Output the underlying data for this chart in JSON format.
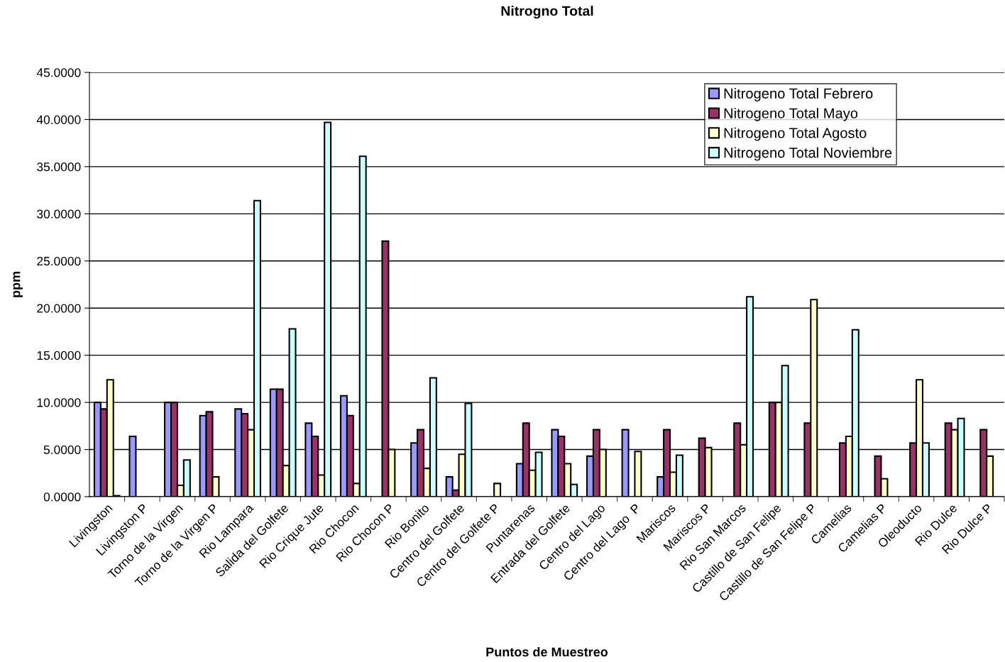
{
  "chart_data": {
    "type": "bar",
    "title": "Nitrogno Total",
    "xlabel": "Puntos de Muestreo",
    "ylabel": "ppm",
    "categories": [
      "Livingston",
      "Livingston P",
      "Torno de la Virgen",
      "Torno de la Virgen P",
      "Rio Lampara",
      "Salida del Golfete",
      "Rio Crique Jute",
      "Rio Chocon",
      "Rio Chocon P",
      "Rio Bonito",
      "Centro del Golfete",
      "Centro del Golfete P",
      "Puntarenas",
      "Entrada del Golfete",
      "Centro del Lago",
      "Centro del Lago  P",
      "Mariscos",
      "Mariscos P",
      "Rio San Marcos",
      "Castillo de San Felipe",
      "Castillo de San Felipe P",
      "Camelias",
      "Camelias P",
      "Oleoducto",
      "Rio Dulce",
      "Rio Dulce P"
    ],
    "series": [
      {
        "name": "Nitrogeno Total Febrero",
        "color": "#9999ff",
        "values": [
          10.0,
          6.4,
          10.0,
          8.6,
          9.3,
          11.4,
          7.8,
          10.7,
          null,
          5.7,
          2.1,
          null,
          3.5,
          7.1,
          4.3,
          7.1,
          2.1,
          null,
          null,
          null,
          null,
          null,
          null,
          null,
          null,
          null
        ]
      },
      {
        "name": "Nitrogeno Total Mayo",
        "color": "#993366",
        "values": [
          9.3,
          null,
          10.0,
          9.0,
          8.8,
          11.4,
          6.4,
          8.6,
          27.1,
          7.1,
          0.7,
          null,
          7.8,
          6.4,
          7.1,
          null,
          7.1,
          6.2,
          7.8,
          10.0,
          7.8,
          5.7,
          4.3,
          5.7,
          7.8,
          7.1
        ]
      },
      {
        "name": "Nitrogeno Total Agosto",
        "color": "#ffffcc",
        "values": [
          12.4,
          null,
          1.2,
          2.1,
          7.1,
          3.3,
          2.3,
          1.4,
          5.0,
          3.0,
          4.5,
          1.4,
          2.8,
          3.5,
          5.0,
          4.8,
          2.6,
          5.2,
          5.5,
          10.0,
          20.9,
          6.4,
          1.9,
          12.4,
          7.1,
          4.3
        ]
      },
      {
        "name": "Nitrogeno Total Noviembre",
        "color": "#ccffff",
        "values": [
          0.1,
          null,
          3.9,
          null,
          31.4,
          17.8,
          39.7,
          36.1,
          null,
          12.6,
          9.9,
          null,
          4.7,
          1.3,
          null,
          null,
          4.4,
          null,
          21.2,
          13.9,
          null,
          17.7,
          null,
          5.7,
          8.3,
          null
        ]
      }
    ],
    "ylim": [
      0,
      45
    ],
    "yticks": [
      {
        "value": 0,
        "label": "0.0000"
      },
      {
        "value": 5,
        "label": "5.0000"
      },
      {
        "value": 10,
        "label": "10.0000"
      },
      {
        "value": 15,
        "label": "15.0000"
      },
      {
        "value": 20,
        "label": "20.0000"
      },
      {
        "value": 25,
        "label": "25.0000"
      },
      {
        "value": 30,
        "label": "30.0000"
      },
      {
        "value": 35,
        "label": "35.0000"
      },
      {
        "value": 40,
        "label": "40.0000"
      },
      {
        "value": 45,
        "label": "45.0000"
      }
    ],
    "grid": "y",
    "legend": "top right"
  }
}
